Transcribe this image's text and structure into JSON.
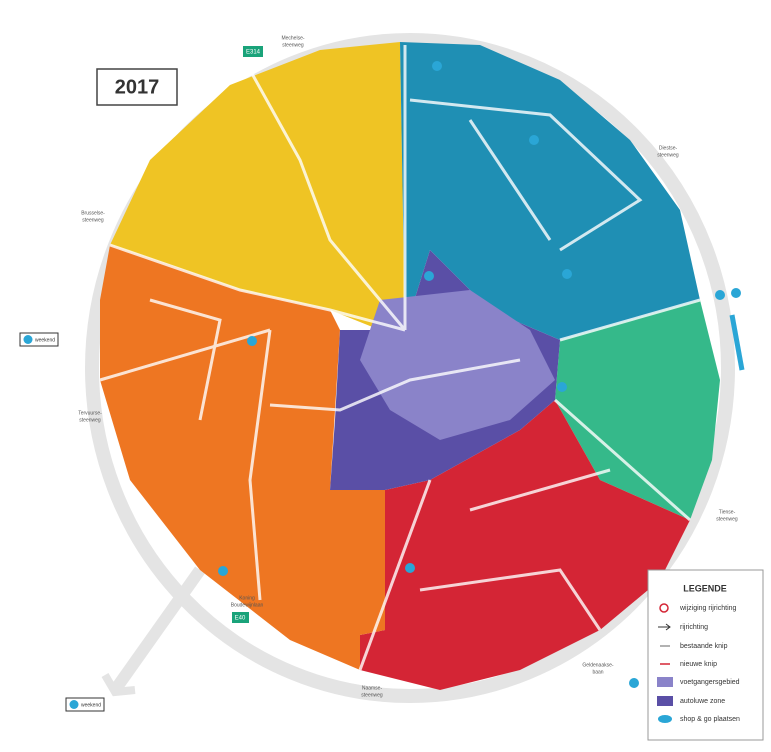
{
  "year": "2017",
  "legend": {
    "title": "LEGENDE",
    "items": [
      {
        "label": "wijziging rijrichting"
      },
      {
        "label": "rijrichting"
      },
      {
        "label": "bestaande knip"
      },
      {
        "label": "nieuwe knip"
      },
      {
        "label": "voetgangersgebied"
      },
      {
        "label": "autoluwe zone"
      },
      {
        "label": "shop & go plaatsen"
      }
    ]
  },
  "road_labels": [
    {
      "lines": [
        "Mechelse-",
        "steenweg"
      ]
    },
    {
      "lines": [
        "Diestse-",
        "steenweg"
      ]
    },
    {
      "lines": [
        "Brusselse-",
        "steenweg"
      ]
    },
    {
      "lines": [
        "Tervuurse-",
        "steenweg"
      ]
    },
    {
      "lines": [
        "Tiense-",
        "steenweg"
      ]
    },
    {
      "lines": [
        "Geldenaakse-",
        "baan"
      ]
    },
    {
      "lines": [
        "Naamse-",
        "steenweg"
      ]
    },
    {
      "lines": [
        "Koning",
        "Boudewijnlaan"
      ]
    }
  ],
  "highway_badges": [
    "E314",
    "E40"
  ],
  "parking_notes": [
    "weekend",
    "weekend"
  ]
}
